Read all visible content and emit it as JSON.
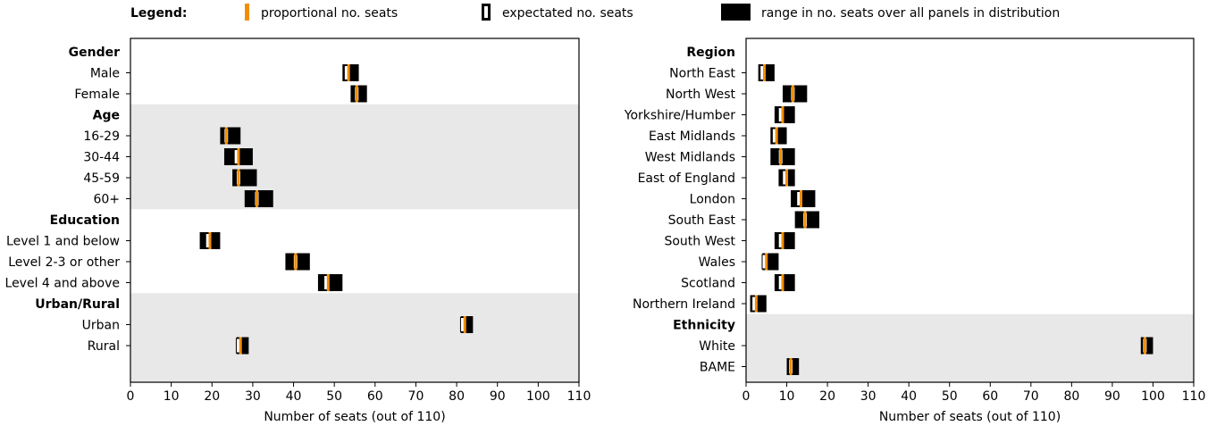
{
  "legend": {
    "title": "Legend:",
    "proportional": "proportional no. seats",
    "expected": "expectated no. seats",
    "range": "range in no. seats over all panels in distribution"
  },
  "colors": {
    "proportional": "#f28e00",
    "range": "#000000",
    "expected_fill": "#ffffff",
    "shade": "#e8e8e8"
  },
  "chart_data": [
    {
      "type": "range",
      "xlabel": "Number of seats (out of 110)",
      "xlim": [
        0,
        110
      ],
      "xticks": [
        0,
        10,
        20,
        30,
        40,
        50,
        60,
        70,
        80,
        90,
        100,
        110
      ],
      "groups": [
        {
          "name": "Gender",
          "shaded": false,
          "rows": [
            {
              "label": "Male",
              "min": 52,
              "max": 56,
              "expected": 53,
              "proportional": 53.5
            },
            {
              "label": "Female",
              "min": 54,
              "max": 58,
              "expected": 55.5,
              "proportional": 55.5
            }
          ]
        },
        {
          "name": "Age",
          "shaded": true,
          "rows": [
            {
              "label": "16-29",
              "min": 22,
              "max": 27,
              "expected": 23.5,
              "proportional": 23.5
            },
            {
              "label": "30-44",
              "min": 23,
              "max": 30,
              "expected": 26,
              "proportional": 26.5
            },
            {
              "label": "45-59",
              "min": 25,
              "max": 31,
              "expected": 26.5,
              "proportional": 26.5
            },
            {
              "label": "60+",
              "min": 28,
              "max": 35,
              "expected": 31,
              "proportional": 31
            }
          ]
        },
        {
          "name": "Education",
          "shaded": false,
          "rows": [
            {
              "label": "Level 1 and below",
              "min": 17,
              "max": 22,
              "expected": 19,
              "proportional": 19.5
            },
            {
              "label": "Level 2-3 or other",
              "min": 38,
              "max": 44,
              "expected": 40.5,
              "proportional": 40.5
            },
            {
              "label": "Level 4 and above",
              "min": 46,
              "max": 52,
              "expected": 48,
              "proportional": 48.5
            }
          ]
        },
        {
          "name": "Urban/Rural",
          "shaded": true,
          "rows": [
            {
              "label": "Urban",
              "min": 81,
              "max": 84,
              "expected": 81.5,
              "proportional": 82
            },
            {
              "label": "Rural",
              "min": 26,
              "max": 29,
              "expected": 26.5,
              "proportional": 27
            }
          ]
        }
      ]
    },
    {
      "type": "range",
      "xlabel": "Number of seats (out of 110)",
      "xlim": [
        0,
        110
      ],
      "xticks": [
        0,
        10,
        20,
        30,
        40,
        50,
        60,
        70,
        80,
        90,
        100,
        110
      ],
      "groups": [
        {
          "name": "Region",
          "shaded": false,
          "rows": [
            {
              "label": "North East",
              "min": 3,
              "max": 7,
              "expected": 4,
              "proportional": 4.5
            },
            {
              "label": "North West",
              "min": 9,
              "max": 15,
              "expected": 11.5,
              "proportional": 11.5
            },
            {
              "label": "Yorkshire/Humber",
              "min": 7,
              "max": 12,
              "expected": 8.5,
              "proportional": 9
            },
            {
              "label": "East Midlands",
              "min": 6,
              "max": 10,
              "expected": 7,
              "proportional": 7.5
            },
            {
              "label": "West Midlands",
              "min": 6,
              "max": 12,
              "expected": 8.5,
              "proportional": 8.5
            },
            {
              "label": "East of England",
              "min": 8,
              "max": 12,
              "expected": 9.5,
              "proportional": 10
            },
            {
              "label": "London",
              "min": 11,
              "max": 17,
              "expected": 13,
              "proportional": 13.5
            },
            {
              "label": "South East",
              "min": 12,
              "max": 18,
              "expected": 14.5,
              "proportional": 14.5
            },
            {
              "label": "South West",
              "min": 7,
              "max": 12,
              "expected": 8.5,
              "proportional": 9
            },
            {
              "label": "Wales",
              "min": 4,
              "max": 8,
              "expected": 4.5,
              "proportional": 5
            },
            {
              "label": "Scotland",
              "min": 7,
              "max": 12,
              "expected": 8.5,
              "proportional": 9
            },
            {
              "label": "Northern Ireland",
              "min": 1,
              "max": 5,
              "expected": 2,
              "proportional": 2.5
            }
          ]
        },
        {
          "name": "Ethnicity",
          "shaded": true,
          "rows": [
            {
              "label": "White",
              "min": 97,
              "max": 100,
              "expected": 98,
              "proportional": 98
            },
            {
              "label": "BAME",
              "min": 10,
              "max": 13,
              "expected": 11,
              "proportional": 11
            }
          ]
        }
      ]
    }
  ]
}
